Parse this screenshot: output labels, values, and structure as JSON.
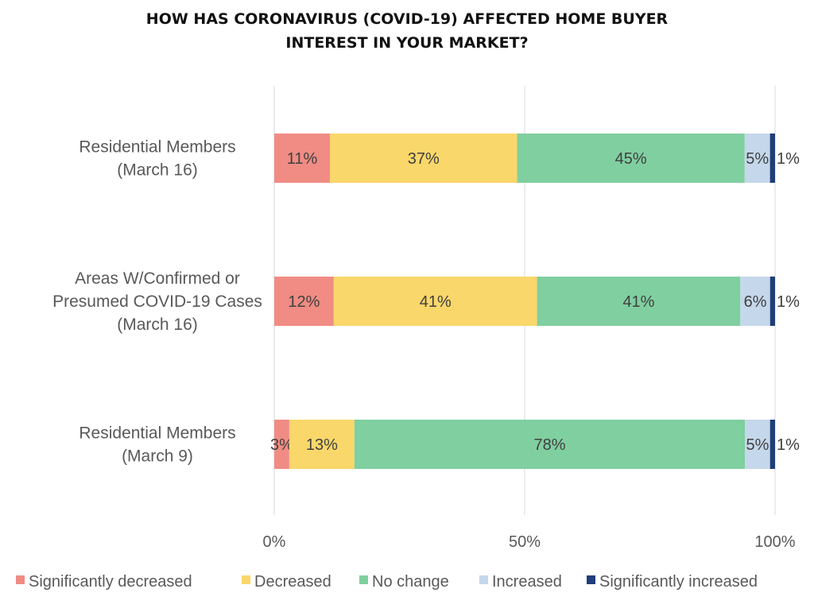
{
  "chart_data": {
    "type": "bar",
    "orientation": "horizontal",
    "stacked": "percent",
    "title_lines": [
      "HOW HAS CORONAVIRUS (COVID-19) AFFECTED HOME BUYER",
      "INTEREST IN YOUR MARKET?"
    ],
    "categories": [
      [
        "Residential Members",
        "(March 16)"
      ],
      [
        "Areas W/Confirmed or",
        "Presumed COVID-19 Cases",
        "(March 16)"
      ],
      [
        "Residential Members",
        "(March 9)"
      ]
    ],
    "series": [
      {
        "name": "Significantly decreased",
        "color": "#f08c84",
        "values": [
          11,
          12,
          3
        ],
        "labels": [
          "11%",
          "12%",
          "3%"
        ]
      },
      {
        "name": "Decreased",
        "color": "#fad76a",
        "values": [
          37,
          41,
          13
        ],
        "labels": [
          "37%",
          "41%",
          "13%"
        ]
      },
      {
        "name": "No change",
        "color": "#80cfa0",
        "values": [
          45,
          41,
          78
        ],
        "labels": [
          "45%",
          "41%",
          "78%"
        ]
      },
      {
        "name": "Increased",
        "color": "#c5d7ea",
        "values": [
          5,
          6,
          5
        ],
        "labels": [
          "5%",
          "6%",
          "5%"
        ]
      },
      {
        "name": "Significantly increased",
        "color": "#1f3e7a",
        "values": [
          1,
          1,
          1
        ],
        "labels": [
          "1%",
          "1%",
          "1%"
        ]
      }
    ],
    "xlim": [
      0,
      100
    ],
    "xticks": [
      0,
      50,
      100
    ],
    "xtick_labels": [
      "0%",
      "50%",
      "100%"
    ],
    "grid": true,
    "legend_position": "bottom"
  }
}
